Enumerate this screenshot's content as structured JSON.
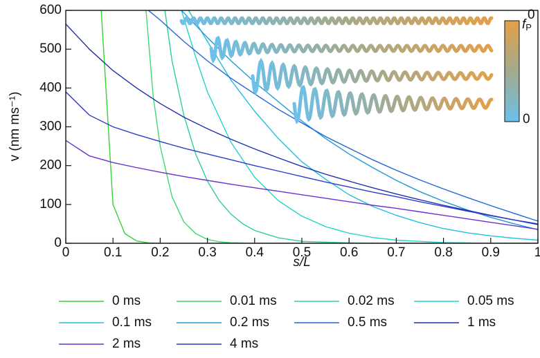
{
  "chart_data": {
    "type": "line",
    "xlabel": "s/L",
    "ylabel": "v (nm ms⁻¹)",
    "xlim": [
      0,
      1
    ],
    "xticks": [
      0,
      0.1,
      0.2,
      0.3,
      0.4,
      0.5,
      0.6,
      0.7,
      0.8,
      0.9,
      1
    ],
    "ylim": [
      0,
      600
    ],
    "yticks": [
      0,
      100,
      200,
      300,
      400,
      500,
      600
    ],
    "series": [
      {
        "name": "0 ms",
        "color": "#33d433",
        "label_color": "#6fe86f",
        "x": [
          0.075,
          0.1,
          0.125,
          0.15,
          0.175,
          0.2,
          1
        ],
        "values": [
          600,
          100,
          25,
          6,
          1,
          0,
          0
        ]
      },
      {
        "name": "0.01 ms",
        "color": "#3ed873",
        "label_color": "#7ee8a6",
        "x": [
          0.17,
          0.185,
          0.2,
          0.225,
          0.25,
          0.275,
          0.3,
          0.325,
          0.35,
          0.4,
          1
        ],
        "values": [
          600,
          380,
          250,
          120,
          55,
          25,
          10,
          4,
          1.5,
          0,
          0
        ]
      },
      {
        "name": "0.02 ms",
        "color": "#2ccf98",
        "label_color": "#3aa985",
        "x": [
          0.21,
          0.225,
          0.25,
          0.275,
          0.3,
          0.325,
          0.35,
          0.375,
          0.4,
          0.45,
          0.5,
          0.6,
          0.7,
          1
        ],
        "values": [
          600,
          470,
          330,
          230,
          160,
          110,
          75,
          50,
          33,
          14,
          5,
          1,
          0,
          0
        ]
      },
      {
        "name": "0.05 ms",
        "color": "#24d6c8",
        "label_color": "#33cfc4",
        "x": [
          0.245,
          0.275,
          0.3,
          0.35,
          0.4,
          0.45,
          0.5,
          0.55,
          0.6,
          0.65,
          0.7,
          0.8,
          0.9,
          1
        ],
        "values": [
          600,
          480,
          390,
          260,
          170,
          110,
          70,
          43,
          26,
          15,
          8,
          2,
          0,
          0
        ]
      },
      {
        "name": "0.1 ms",
        "color": "#1ec0dc",
        "label_color": "#2bb5d6",
        "x": [
          0.26,
          0.3,
          0.35,
          0.4,
          0.45,
          0.5,
          0.55,
          0.6,
          0.65,
          0.7,
          0.75,
          0.8,
          0.85,
          0.9,
          0.95,
          1
        ],
        "values": [
          600,
          520,
          420,
          340,
          270,
          210,
          165,
          125,
          95,
          72,
          53,
          38,
          27,
          19,
          13,
          8
        ]
      },
      {
        "name": "0.2 ms",
        "color": "#1c9ad6",
        "label_color": "#2290c8",
        "x": [
          0.245,
          0.3,
          0.35,
          0.4,
          0.45,
          0.5,
          0.55,
          0.6,
          0.65,
          0.7,
          0.75,
          0.8,
          0.85,
          0.9,
          0.95,
          1
        ],
        "values": [
          600,
          530,
          470,
          415,
          365,
          315,
          270,
          230,
          195,
          162,
          133,
          108,
          86,
          67,
          50,
          35
        ]
      },
      {
        "name": "0.5 ms",
        "color": "#2166d6",
        "label_color": "#2a5fc4",
        "x": [
          0.175,
          0.2,
          0.25,
          0.3,
          0.35,
          0.4,
          0.45,
          0.5,
          0.55,
          0.6,
          0.65,
          0.7,
          0.75,
          0.8,
          0.85,
          0.9,
          0.95,
          1
        ],
        "values": [
          600,
          575,
          520,
          470,
          425,
          385,
          345,
          310,
          275,
          245,
          215,
          188,
          163,
          140,
          118,
          97,
          77,
          57
        ]
      },
      {
        "name": "1 ms",
        "color": "#1f2fb0",
        "label_color": "#2233a8",
        "x": [
          0,
          0.05,
          0.1,
          0.15,
          0.2,
          0.25,
          0.3,
          0.35,
          0.4,
          0.45,
          0.5,
          0.55,
          0.6,
          0.65,
          0.7,
          0.75,
          0.8,
          0.85,
          0.9,
          0.95,
          1
        ],
        "values": [
          565,
          500,
          445,
          400,
          360,
          325,
          295,
          268,
          243,
          220,
          198,
          178,
          160,
          143,
          127,
          112,
          98,
          85,
          72,
          60,
          48
        ]
      },
      {
        "name": "2 ms",
        "color": "#6a30d0",
        "label_color": "#6a34c8",
        "x": [
          0,
          0.05,
          0.1,
          0.15,
          0.2,
          0.25,
          0.3,
          0.35,
          0.4,
          0.45,
          0.5,
          0.55,
          0.6,
          0.65,
          0.7,
          0.75,
          0.8,
          0.85,
          0.9,
          0.95,
          1
        ],
        "values": [
          265,
          225,
          208,
          195,
          183,
          172,
          162,
          152,
          143,
          134,
          125,
          116,
          107,
          98,
          90,
          81,
          72,
          63,
          54,
          45,
          36
        ]
      },
      {
        "name": "4 ms",
        "color": "#2a3cc8",
        "label_color": "#3040c0",
        "x": [
          0,
          0.05,
          0.1,
          0.15,
          0.2,
          0.25,
          0.3,
          0.35,
          0.4,
          0.45,
          0.5,
          0.55,
          0.6,
          0.65,
          0.7,
          0.75,
          0.8,
          0.85,
          0.9,
          0.95,
          1
        ],
        "values": [
          390,
          330,
          300,
          280,
          262,
          245,
          230,
          215,
          200,
          186,
          172,
          158,
          145,
          132,
          120,
          107,
          95,
          83,
          71,
          60,
          50
        ]
      }
    ],
    "colorbar": {
      "title": "f",
      "title_sub": "P",
      "title_sup": "0",
      "low_label": "0",
      "colors": [
        "#e3a04a",
        "#a3aa8e",
        "#6cc0ea"
      ]
    }
  }
}
